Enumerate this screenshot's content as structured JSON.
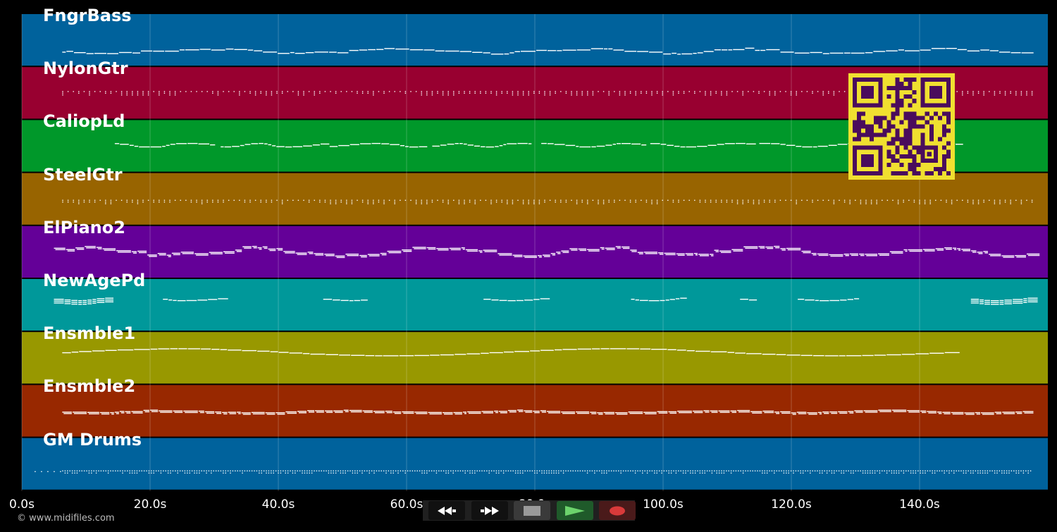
{
  "tracks": [
    {
      "name": "FngrBass",
      "color": "#00629c",
      "style": "bass",
      "start": 6.3,
      "end": 157.5
    },
    {
      "name": "NylonGtr",
      "color": "#980030",
      "style": "dots",
      "start": 6.3,
      "end": 157.5
    },
    {
      "name": "CaliopLd",
      "color": "#00982a",
      "style": "phrases",
      "start": 14.5,
      "end": 146
    },
    {
      "name": "SteelGtr",
      "color": "#986400",
      "style": "dots",
      "start": 6.3,
      "end": 157.5
    },
    {
      "name": "ElPiano2",
      "color": "#640098",
      "style": "wave",
      "start": 5,
      "end": 157.5
    },
    {
      "name": "NewAgePd",
      "color": "#00989a",
      "style": "sparse",
      "start": 5,
      "end": 157.5
    },
    {
      "name": "Ensmble1",
      "color": "#989800",
      "style": "smooth",
      "start": 6.3,
      "end": 146
    },
    {
      "name": "Ensmble2",
      "color": "#982800",
      "style": "flat",
      "start": 6.3,
      "end": 157.5
    },
    {
      "name": "GM Drums",
      "color": "#00629c",
      "style": "drums",
      "start": 2,
      "end": 157.5
    }
  ],
  "axis": {
    "ticks": [
      "0.0s",
      "20.0s",
      "40.0s",
      "60.0s",
      "80.0s",
      "100.0s",
      "120.0s",
      "140.0s"
    ],
    "tick_values": [
      0,
      20,
      40,
      60,
      80,
      100,
      120,
      140
    ],
    "max_seconds": 160
  },
  "footer": {
    "copyright": "© www.midifiles.com"
  },
  "transport": [
    {
      "name": "rewind-button",
      "icon": "rewind-icon",
      "bg": "#111111",
      "fg": "#ffffff"
    },
    {
      "name": "fast-forward-button",
      "icon": "fast-forward-icon",
      "bg": "#111111",
      "fg": "#ffffff"
    },
    {
      "name": "stop-button",
      "icon": "stop-icon",
      "bg": "#3a3a3a",
      "fg": "#9a9a9a"
    },
    {
      "name": "play-button",
      "icon": "play-icon",
      "bg": "#1f5a2a",
      "fg": "#6cd36c"
    },
    {
      "name": "record-button",
      "icon": "record-icon",
      "bg": "#4a1a1a",
      "fg": "#d83a3a"
    }
  ],
  "qr": {
    "fg": "#4a0c5c",
    "bg": "#f0e030"
  }
}
